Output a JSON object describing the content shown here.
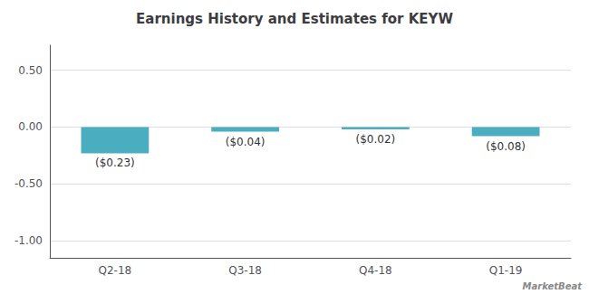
{
  "chart_data": {
    "type": "bar",
    "title": "Earnings History and Estimates for KEYW",
    "categories": [
      "Q2-18",
      "Q3-18",
      "Q4-18",
      "Q1-19"
    ],
    "values": [
      -0.23,
      -0.04,
      -0.02,
      -0.08
    ],
    "value_labels": [
      "($0.23)",
      "($0.04)",
      "($0.02)",
      "($0.08)"
    ],
    "data_labels": true,
    "color": "#4badc0",
    "ylim": [
      -1.15,
      0.72
    ],
    "yticks": [
      {
        "value": 0.5,
        "label": "0.50"
      },
      {
        "value": 0,
        "label": "0.00"
      },
      {
        "value": -0.5,
        "label": "-0.50"
      },
      {
        "value": -1,
        "label": "-1.00"
      }
    ],
    "grid": true,
    "annotations": [
      "MarketBeat"
    ]
  }
}
